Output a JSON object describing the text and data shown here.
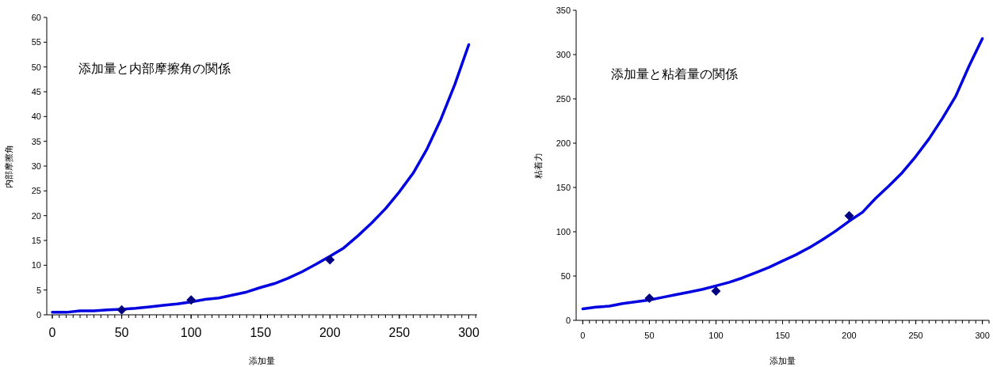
{
  "chart_data": [
    {
      "type": "line",
      "title": "添加量と内部摩擦角の関係",
      "xlabel": "添加量",
      "ylabel": "内部摩擦角",
      "xlim": [
        -4,
        306
      ],
      "ylim": [
        0,
        60
      ],
      "xticks": [
        0,
        50,
        100,
        150,
        200,
        250,
        300
      ],
      "yticks": [
        0,
        5,
        10,
        15,
        20,
        25,
        30,
        35,
        40,
        45,
        50,
        55,
        60
      ],
      "series": [
        {
          "type": "line",
          "color": "#0000e0",
          "marker": "none",
          "x": [
            0,
            10,
            20,
            30,
            40,
            50,
            60,
            70,
            80,
            90,
            100,
            110,
            120,
            130,
            140,
            150,
            160,
            170,
            180,
            190,
            200,
            210,
            220,
            230,
            240,
            250,
            260,
            270,
            280,
            290,
            300
          ],
          "values": [
            0.5,
            0.5,
            0.8,
            0.8,
            1.0,
            1.1,
            1.3,
            1.6,
            1.9,
            2.2,
            2.6,
            3.1,
            3.4,
            4.0,
            4.6,
            5.5,
            6.3,
            7.4,
            8.7,
            10.2,
            11.8,
            13.5,
            15.9,
            18.5,
            21.4,
            24.8,
            28.6,
            33.5,
            39.5,
            46.5,
            54.5
          ]
        },
        {
          "type": "scatter",
          "color": "#000080",
          "marker": "diamond",
          "x": [
            50,
            100,
            200
          ],
          "values": [
            1.0,
            3.0,
            11.1
          ]
        }
      ]
    },
    {
      "type": "line",
      "title": "添加量と粘着量の関係",
      "xlabel": "添加量",
      "ylabel": "粘着力",
      "xlim": [
        -5,
        305
      ],
      "ylim": [
        0,
        350
      ],
      "xticks": [
        0,
        50,
        100,
        150,
        200,
        250,
        300
      ],
      "yticks": [
        0,
        50,
        100,
        150,
        200,
        250,
        300,
        350
      ],
      "series": [
        {
          "type": "line",
          "color": "#0000e0",
          "marker": "none",
          "x": [
            0,
            10,
            20,
            30,
            40,
            50,
            60,
            70,
            80,
            90,
            100,
            110,
            120,
            130,
            140,
            150,
            160,
            170,
            180,
            190,
            200,
            210,
            220,
            230,
            240,
            250,
            260,
            270,
            280,
            290,
            300
          ],
          "values": [
            13,
            15,
            16,
            19,
            21,
            23,
            26,
            29,
            32,
            35,
            39,
            43,
            48,
            54,
            60,
            67,
            74,
            82,
            91,
            101,
            112,
            122,
            138,
            152,
            167,
            185,
            205,
            228,
            253,
            287,
            318
          ]
        },
        {
          "type": "scatter",
          "color": "#000080",
          "marker": "diamond",
          "x": [
            50,
            100,
            200
          ],
          "values": [
            25,
            33,
            118
          ]
        }
      ]
    }
  ]
}
